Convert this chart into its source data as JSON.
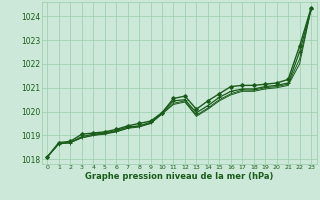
{
  "x": [
    0,
    1,
    2,
    3,
    4,
    5,
    6,
    7,
    8,
    9,
    10,
    11,
    12,
    13,
    14,
    15,
    16,
    17,
    18,
    19,
    20,
    21,
    22,
    23
  ],
  "line1": [
    1018.1,
    1018.7,
    1018.75,
    1019.05,
    1019.1,
    1019.15,
    1019.25,
    1019.4,
    1019.5,
    1019.6,
    1019.95,
    1020.55,
    1020.65,
    1020.1,
    1020.45,
    1020.75,
    1021.05,
    1021.1,
    1021.1,
    1021.15,
    1021.2,
    1021.35,
    1022.75,
    1024.35
  ],
  "line2": [
    1018.1,
    1018.65,
    1018.7,
    1018.95,
    1019.05,
    1019.1,
    1019.2,
    1019.35,
    1019.4,
    1019.55,
    1019.95,
    1020.45,
    1020.5,
    1019.95,
    1020.25,
    1020.6,
    1020.85,
    1020.95,
    1020.95,
    1021.05,
    1021.1,
    1021.2,
    1022.5,
    1024.3
  ],
  "line3": [
    1018.1,
    1018.65,
    1018.7,
    1018.9,
    1019.0,
    1019.1,
    1019.15,
    1019.3,
    1019.4,
    1019.5,
    1019.9,
    1020.35,
    1020.45,
    1019.85,
    1020.15,
    1020.5,
    1020.75,
    1020.9,
    1020.9,
    1021.0,
    1021.05,
    1021.15,
    1022.2,
    1024.3
  ],
  "line4": [
    1018.1,
    1018.65,
    1018.7,
    1018.9,
    1019.0,
    1019.05,
    1019.15,
    1019.3,
    1019.35,
    1019.5,
    1019.9,
    1020.3,
    1020.4,
    1019.8,
    1020.1,
    1020.45,
    1020.7,
    1020.85,
    1020.85,
    1020.95,
    1021.0,
    1021.1,
    1022.0,
    1024.3
  ],
  "bg_color": "#cce8d8",
  "grid_color": "#99ccaa",
  "line_color_dark": "#1a5c1a",
  "line_color_marker": "#2d6e2d",
  "xlabel": "Graphe pression niveau de la mer (hPa)",
  "ylim": [
    1017.8,
    1024.6
  ],
  "xlim": [
    -0.5,
    23.5
  ],
  "yticks": [
    1018,
    1019,
    1020,
    1021,
    1022,
    1023,
    1024
  ],
  "xticks": [
    0,
    1,
    2,
    3,
    4,
    5,
    6,
    7,
    8,
    9,
    10,
    11,
    12,
    13,
    14,
    15,
    16,
    17,
    18,
    19,
    20,
    21,
    22,
    23
  ],
  "ytick_fontsize": 5.5,
  "xtick_fontsize": 4.5,
  "xlabel_fontsize": 6.0
}
